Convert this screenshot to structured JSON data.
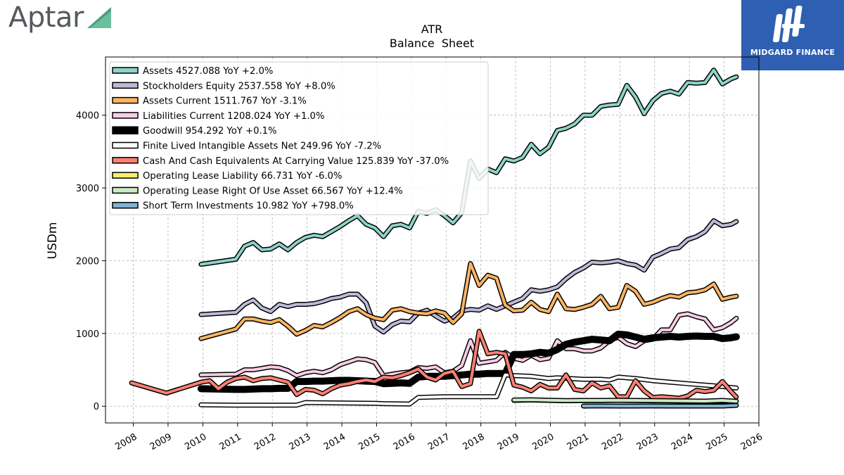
{
  "branding": {
    "company": "Aptar",
    "publisher": "MIDGARD FINANCE"
  },
  "chart_data": {
    "type": "line",
    "title": "ATR",
    "subtitle": "Balance  Sheet",
    "ylabel": "USDm",
    "xlabel": "",
    "xlim": [
      2007.2,
      2026.0
    ],
    "ylim": [
      -230,
      4800
    ],
    "x_ticks": [
      2008,
      2009,
      2010,
      2011,
      2012,
      2013,
      2014,
      2015,
      2016,
      2017,
      2018,
      2019,
      2020,
      2021,
      2022,
      2023,
      2024,
      2025,
      2026
    ],
    "x_tick_labels": [
      "2008",
      "2009",
      "2010",
      "2011",
      "2012",
      "2013",
      "2014",
      "2015",
      "2016",
      "2017",
      "2018",
      "2019",
      "2020",
      "2021",
      "2022",
      "2023",
      "2024",
      "2025",
      "2026"
    ],
    "y_ticks": [
      0,
      1000,
      2000,
      3000,
      4000
    ],
    "y_tick_labels": [
      "0",
      "1000",
      "2000",
      "3000",
      "4000"
    ],
    "grid": true,
    "legend_position": "top-left",
    "series": [
      {
        "name": "Assets",
        "legend": "Assets  4527.088 YoY +2.0%",
        "color": "#8dd3c7",
        "linewidth": 4,
        "x": [
          2009.95,
          2010.95,
          2011.2,
          2011.45,
          2011.7,
          2011.95,
          2012.2,
          2012.45,
          2012.7,
          2012.95,
          2013.2,
          2013.45,
          2013.7,
          2013.95,
          2014.2,
          2014.45,
          2014.7,
          2014.95,
          2015.2,
          2015.45,
          2015.7,
          2015.95,
          2016.2,
          2016.45,
          2016.7,
          2016.95,
          2017.2,
          2017.45,
          2017.7,
          2017.95,
          2018.2,
          2018.45,
          2018.7,
          2018.95,
          2019.2,
          2019.45,
          2019.7,
          2019.95,
          2020.2,
          2020.45,
          2020.7,
          2020.95,
          2021.2,
          2021.45,
          2021.7,
          2021.95,
          2022.2,
          2022.45,
          2022.7,
          2022.95,
          2023.2,
          2023.45,
          2023.7,
          2023.95,
          2024.2,
          2024.45,
          2024.7,
          2024.95,
          2025.2,
          2025.35
        ],
        "y": [
          1950,
          2020,
          2200,
          2250,
          2150,
          2160,
          2230,
          2150,
          2250,
          2320,
          2350,
          2330,
          2400,
          2470,
          2550,
          2620,
          2500,
          2450,
          2330,
          2480,
          2500,
          2450,
          2680,
          2650,
          2700,
          2620,
          2520,
          2660,
          3370,
          3130,
          3260,
          3210,
          3400,
          3370,
          3420,
          3600,
          3470,
          3560,
          3790,
          3820,
          3880,
          4000,
          4000,
          4120,
          4140,
          4150,
          4410,
          4250,
          4020,
          4200,
          4300,
          4330,
          4290,
          4450,
          4440,
          4450,
          4620,
          4430,
          4500,
          4527
        ]
      },
      {
        "name": "Stockholders Equity",
        "legend": "Stockholders Equity  2537.558 YoY +8.0%",
        "color": "#bebada",
        "linewidth": 4,
        "x": [
          2009.95,
          2010.95,
          2011.2,
          2011.45,
          2011.7,
          2011.95,
          2012.2,
          2012.45,
          2012.7,
          2012.95,
          2013.2,
          2013.45,
          2013.7,
          2013.95,
          2014.2,
          2014.45,
          2014.7,
          2014.95,
          2015.2,
          2015.45,
          2015.7,
          2015.95,
          2016.2,
          2016.45,
          2016.7,
          2016.95,
          2017.2,
          2017.45,
          2017.7,
          2017.95,
          2018.2,
          2018.45,
          2018.7,
          2018.95,
          2019.2,
          2019.45,
          2019.7,
          2019.95,
          2020.2,
          2020.45,
          2020.7,
          2020.95,
          2021.2,
          2021.45,
          2021.7,
          2021.95,
          2022.2,
          2022.45,
          2022.7,
          2022.95,
          2023.2,
          2023.45,
          2023.7,
          2023.95,
          2024.2,
          2024.45,
          2024.7,
          2024.95,
          2025.2,
          2025.35
        ],
        "y": [
          1260,
          1290,
          1400,
          1460,
          1350,
          1300,
          1400,
          1370,
          1400,
          1400,
          1410,
          1440,
          1480,
          1500,
          1540,
          1540,
          1420,
          1100,
          1020,
          1120,
          1170,
          1160,
          1280,
          1320,
          1240,
          1170,
          1210,
          1310,
          1330,
          1320,
          1380,
          1330,
          1380,
          1430,
          1480,
          1600,
          1580,
          1600,
          1640,
          1750,
          1840,
          1900,
          1980,
          1970,
          1980,
          2000,
          1960,
          1940,
          1870,
          2050,
          2100,
          2160,
          2180,
          2290,
          2330,
          2400,
          2550,
          2480,
          2500,
          2538
        ]
      },
      {
        "name": "Assets Current",
        "legend": "Assets Current  1511.767 YoY -3.1%",
        "color": "#fdb462",
        "linewidth": 4,
        "x": [
          2009.95,
          2010.95,
          2011.2,
          2011.45,
          2011.7,
          2011.95,
          2012.2,
          2012.45,
          2012.7,
          2012.95,
          2013.2,
          2013.45,
          2013.7,
          2013.95,
          2014.2,
          2014.45,
          2014.7,
          2014.95,
          2015.2,
          2015.45,
          2015.7,
          2015.95,
          2016.2,
          2016.45,
          2016.7,
          2016.95,
          2017.2,
          2017.45,
          2017.7,
          2017.95,
          2018.2,
          2018.45,
          2018.7,
          2018.95,
          2019.2,
          2019.45,
          2019.7,
          2019.95,
          2020.2,
          2020.45,
          2020.7,
          2020.95,
          2021.2,
          2021.45,
          2021.7,
          2021.95,
          2022.2,
          2022.45,
          2022.7,
          2022.95,
          2023.2,
          2023.45,
          2023.7,
          2023.95,
          2024.2,
          2024.45,
          2024.7,
          2024.95,
          2025.2,
          2025.35
        ],
        "y": [
          930,
          1060,
          1200,
          1200,
          1170,
          1150,
          1190,
          1100,
          990,
          1040,
          1110,
          1090,
          1150,
          1220,
          1300,
          1340,
          1260,
          1210,
          1190,
          1320,
          1340,
          1300,
          1280,
          1270,
          1310,
          1280,
          1150,
          1270,
          1960,
          1660,
          1800,
          1760,
          1390,
          1310,
          1320,
          1430,
          1330,
          1300,
          1540,
          1340,
          1330,
          1360,
          1400,
          1510,
          1340,
          1360,
          1660,
          1580,
          1400,
          1430,
          1480,
          1520,
          1500,
          1560,
          1570,
          1600,
          1680,
          1470,
          1500,
          1512
        ]
      },
      {
        "name": "Liabilities Current",
        "legend": "Liabilities Current  1208.024 YoY +1.0%",
        "color": "#fccde5",
        "linewidth": 4,
        "x": [
          2009.95,
          2010.95,
          2011.2,
          2011.45,
          2011.7,
          2011.95,
          2012.2,
          2012.45,
          2012.7,
          2012.95,
          2013.2,
          2013.45,
          2013.7,
          2013.95,
          2014.2,
          2014.45,
          2014.7,
          2014.95,
          2015.2,
          2015.45,
          2015.7,
          2015.95,
          2016.2,
          2016.45,
          2016.7,
          2016.95,
          2017.2,
          2017.45,
          2017.7,
          2017.95,
          2018.2,
          2018.45,
          2018.7,
          2018.95,
          2019.2,
          2019.45,
          2019.7,
          2019.95,
          2020.2,
          2020.45,
          2020.7,
          2020.95,
          2021.2,
          2021.45,
          2021.7,
          2021.95,
          2022.2,
          2022.45,
          2022.7,
          2022.95,
          2023.2,
          2023.45,
          2023.7,
          2023.95,
          2024.2,
          2024.45,
          2024.7,
          2024.95,
          2025.2,
          2025.35
        ],
        "y": [
          430,
          440,
          500,
          500,
          520,
          540,
          530,
          490,
          420,
          460,
          480,
          460,
          500,
          570,
          610,
          650,
          640,
          600,
          420,
          440,
          460,
          470,
          530,
          520,
          540,
          460,
          480,
          560,
          900,
          590,
          610,
          630,
          740,
          660,
          630,
          700,
          640,
          660,
          900,
          790,
          790,
          760,
          760,
          800,
          900,
          950,
          860,
          820,
          900,
          920,
          1050,
          1050,
          1250,
          1270,
          1230,
          1200,
          1050,
          1080,
          1150,
          1208
        ]
      },
      {
        "name": "Goodwill",
        "legend": "Goodwill  954.292 YoY +0.1%",
        "color": "#000000",
        "linewidth": 7,
        "x": [
          2009.95,
          2010.95,
          2011.2,
          2011.45,
          2011.7,
          2011.95,
          2012.2,
          2012.45,
          2012.7,
          2012.95,
          2013.2,
          2013.45,
          2013.7,
          2013.95,
          2014.2,
          2014.45,
          2014.7,
          2014.95,
          2015.2,
          2015.45,
          2015.7,
          2015.95,
          2016.2,
          2016.45,
          2016.7,
          2016.95,
          2017.2,
          2017.45,
          2017.7,
          2017.95,
          2018.2,
          2018.45,
          2018.7,
          2018.95,
          2019.2,
          2019.45,
          2019.7,
          2019.95,
          2020.2,
          2020.45,
          2020.7,
          2020.95,
          2021.2,
          2021.45,
          2021.7,
          2021.95,
          2022.2,
          2022.45,
          2022.7,
          2022.95,
          2023.2,
          2023.45,
          2023.7,
          2023.95,
          2024.2,
          2024.45,
          2024.7,
          2024.95,
          2025.2,
          2025.35
        ],
        "y": [
          240,
          230,
          230,
          235,
          240,
          240,
          245,
          245,
          340,
          340,
          345,
          345,
          350,
          355,
          355,
          350,
          345,
          340,
          310,
          315,
          320,
          315,
          400,
          410,
          410,
          410,
          420,
          430,
          440,
          440,
          450,
          450,
          450,
          710,
          710,
          720,
          740,
          730,
          780,
          850,
          880,
          900,
          920,
          910,
          900,
          990,
          980,
          950,
          920,
          940,
          950,
          960,
          950,
          960,
          965,
          960,
          960,
          930,
          940,
          954
        ]
      },
      {
        "name": "Finite Lived Intangible Assets Net",
        "legend": "Finite Lived Intangible Assets Net  249.96 YoY -7.2%",
        "color": "#ffffff",
        "linewidth": 4,
        "x": [
          2009.95,
          2010.95,
          2011.95,
          2012.7,
          2012.95,
          2013.95,
          2014.95,
          2015.2,
          2015.95,
          2016.2,
          2016.95,
          2017.2,
          2017.95,
          2018.45,
          2018.7,
          2018.95,
          2019.45,
          2019.95,
          2020.2,
          2020.95,
          2021.45,
          2021.7,
          2021.95,
          2022.45,
          2022.95,
          2023.45,
          2023.95,
          2024.45,
          2024.95,
          2025.35
        ],
        "y": [
          20,
          15,
          15,
          15,
          50,
          45,
          40,
          35,
          30,
          120,
          130,
          130,
          130,
          130,
          430,
          420,
          410,
          380,
          390,
          370,
          370,
          360,
          400,
          380,
          350,
          330,
          310,
          290,
          270,
          250
        ]
      },
      {
        "name": "Cash And Cash Equivalents At Carrying Value",
        "legend": "Cash And Cash Equivalents At Carrying Value  125.839 YoY -37.0%",
        "color": "#fb8072",
        "linewidth": 4,
        "x": [
          2007.95,
          2008.95,
          2009.95,
          2010.2,
          2010.45,
          2010.7,
          2010.95,
          2011.2,
          2011.45,
          2011.7,
          2011.95,
          2012.2,
          2012.45,
          2012.7,
          2012.95,
          2013.2,
          2013.45,
          2013.7,
          2013.95,
          2014.2,
          2014.45,
          2014.7,
          2014.95,
          2015.2,
          2015.45,
          2015.7,
          2015.95,
          2016.2,
          2016.45,
          2016.7,
          2016.95,
          2017.2,
          2017.45,
          2017.7,
          2017.95,
          2018.2,
          2018.45,
          2018.7,
          2018.95,
          2019.2,
          2019.45,
          2019.7,
          2019.95,
          2020.2,
          2020.45,
          2020.7,
          2020.95,
          2021.2,
          2021.45,
          2021.7,
          2021.95,
          2022.2,
          2022.45,
          2022.7,
          2022.95,
          2023.2,
          2023.45,
          2023.7,
          2023.95,
          2024.2,
          2024.45,
          2024.7,
          2024.95,
          2025.2,
          2025.35
        ],
        "y": [
          320,
          180,
          330,
          350,
          240,
          330,
          380,
          400,
          350,
          380,
          390,
          360,
          330,
          160,
          230,
          220,
          170,
          240,
          290,
          310,
          340,
          360,
          340,
          400,
          390,
          420,
          460,
          510,
          400,
          360,
          450,
          480,
          270,
          310,
          1030,
          720,
          740,
          720,
          290,
          260,
          210,
          300,
          250,
          250,
          430,
          230,
          210,
          320,
          250,
          280,
          130,
          130,
          350,
          210,
          120,
          130,
          120,
          110,
          140,
          220,
          200,
          220,
          340,
          200,
          126
        ]
      },
      {
        "name": "Operating Lease Liability",
        "legend": "Operating Lease Liability  66.731 YoY -6.0%",
        "color": "#ffed6f",
        "linewidth": 4,
        "x": [
          2018.95,
          2019.45,
          2019.95,
          2020.45,
          2020.95,
          2021.45,
          2021.95,
          2022.45,
          2022.95,
          2023.45,
          2023.95,
          2024.45,
          2024.95,
          2025.35
        ],
        "y": [
          80,
          85,
          80,
          75,
          78,
          78,
          80,
          78,
          75,
          72,
          70,
          68,
          70,
          67
        ]
      },
      {
        "name": "Operating Lease Right Of Use Asset",
        "legend": "Operating Lease Right Of Use Asset  66.567 YoY +12.4%",
        "color": "#ccebc5",
        "linewidth": 4,
        "x": [
          2018.95,
          2019.45,
          2019.95,
          2020.45,
          2020.95,
          2021.45,
          2021.95,
          2022.45,
          2022.95,
          2023.45,
          2023.95,
          2024.45,
          2024.95,
          2025.35
        ],
        "y": [
          85,
          88,
          82,
          78,
          80,
          80,
          82,
          80,
          78,
          75,
          72,
          70,
          80,
          67
        ]
      },
      {
        "name": "Short Term Investments",
        "legend": "Short Term Investments  10.982 YoY +798.0%",
        "color": "#80b1d3",
        "linewidth": 4,
        "x": [
          2020.95,
          2021.45,
          2021.95,
          2022.45,
          2022.95,
          2023.45,
          2023.95,
          2024.45,
          2024.95,
          2025.35
        ],
        "y": [
          2,
          3,
          2,
          2,
          3,
          2,
          2,
          2,
          2,
          11
        ]
      }
    ]
  }
}
